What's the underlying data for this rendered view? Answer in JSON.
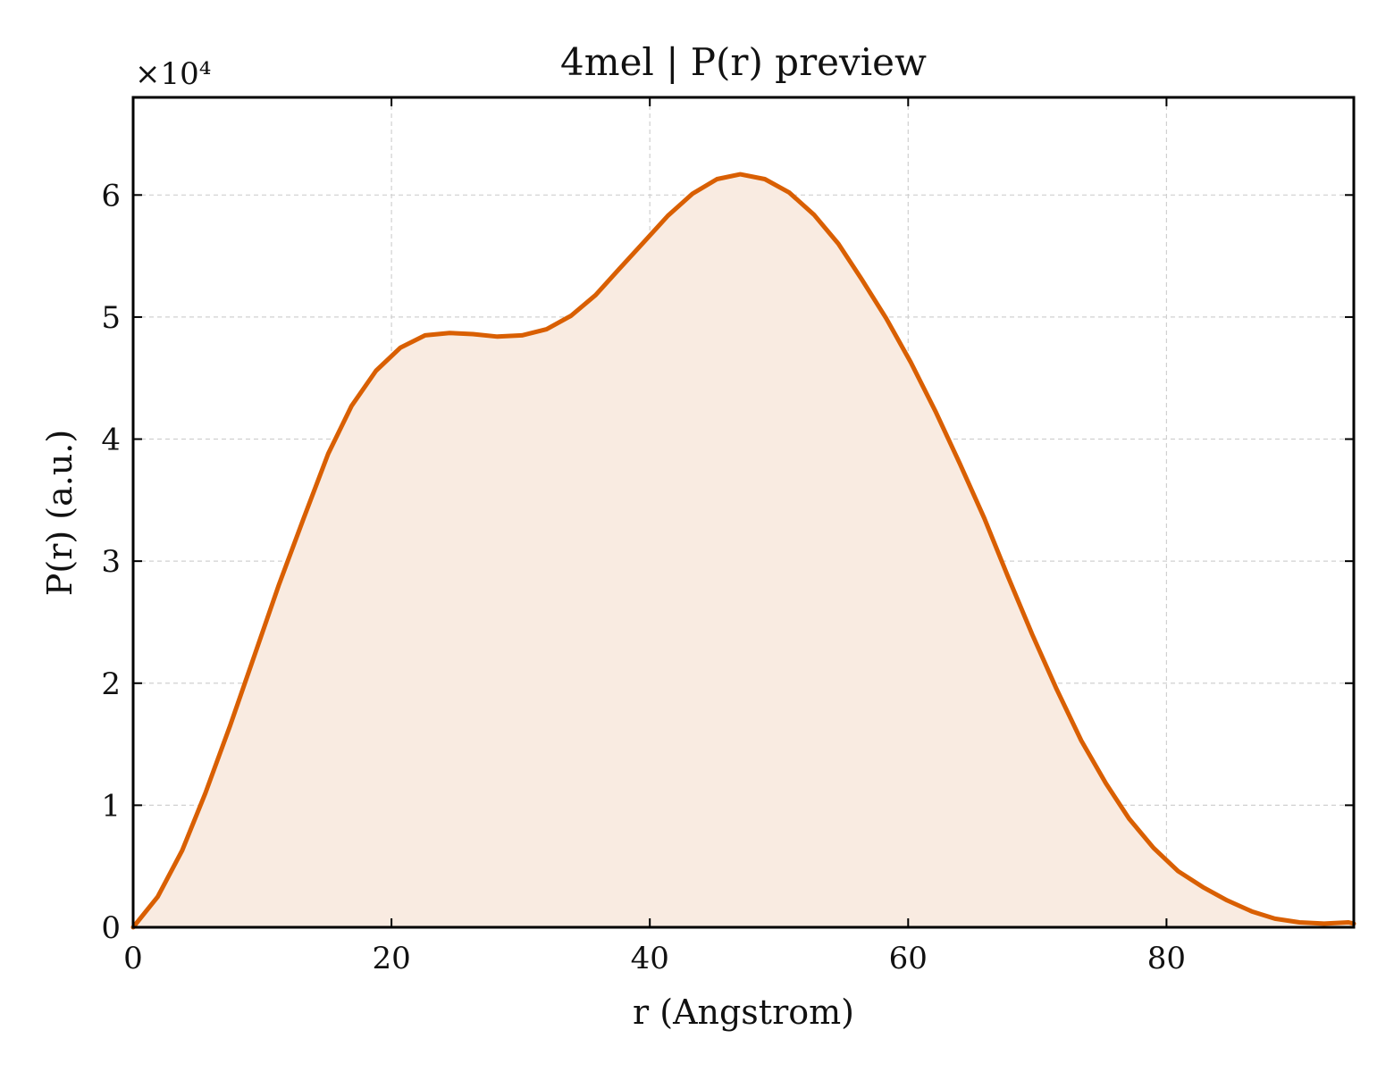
{
  "chart_data": {
    "type": "area",
    "title": "4mel | P(r) preview",
    "xlabel": "r (Angstrom)",
    "ylabel": "P(r) (a.u.)",
    "y_offset_label": "×10⁴",
    "y_scale": 10000,
    "xlim": [
      0,
      94.5
    ],
    "ylim": [
      0,
      68000
    ],
    "xticks": [
      0,
      20,
      40,
      60,
      80
    ],
    "yticks": [
      0,
      1,
      2,
      3,
      4,
      5,
      6
    ],
    "grid": true,
    "line_color": "#d95f02",
    "fill_color": "#f9ebe1",
    "series": [
      {
        "x": [
          0,
          1.9,
          3.8,
          5.6,
          7.5,
          9.4,
          11.3,
          13.2,
          15.1,
          16.9,
          18.8,
          20.7,
          22.6,
          24.5,
          26.3,
          28.2,
          30.1,
          32.0,
          33.9,
          35.8,
          37.6,
          39.5,
          41.4,
          43.3,
          45.2,
          47.0,
          48.9,
          50.8,
          52.7,
          54.6,
          56.4,
          58.3,
          60.2,
          62.1,
          64.0,
          65.9,
          67.7,
          69.6,
          71.5,
          73.4,
          75.3,
          77.1,
          79.0,
          80.9,
          82.8,
          84.7,
          86.6,
          88.4,
          90.3,
          92.2,
          94.1,
          94.5
        ],
        "y": [
          0,
          2500,
          6300,
          11000,
          16500,
          22300,
          28100,
          33500,
          38800,
          42700,
          45600,
          47500,
          48500,
          48700,
          48600,
          48400,
          48500,
          49000,
          50100,
          51800,
          53900,
          56100,
          58300,
          60100,
          61300,
          61700,
          61300,
          60200,
          58400,
          56000,
          53100,
          49900,
          46300,
          42300,
          38000,
          33500,
          28800,
          24000,
          19500,
          15300,
          11800,
          8900,
          6500,
          4600,
          3300,
          2200,
          1300,
          700,
          400,
          300,
          400,
          300
        ]
      }
    ]
  }
}
